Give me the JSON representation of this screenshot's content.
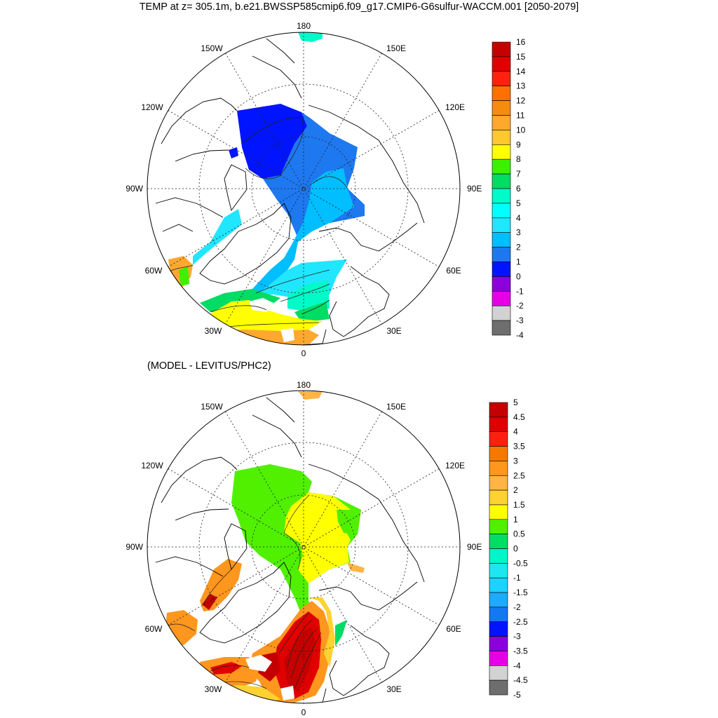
{
  "title": "TEMP at z= 305.1m, b.e21.BWSSP585cmip6.f09_g17.CMIP6-G6sulfur-WACCM.001 [2050-2079]",
  "panels": [
    {
      "id": "temp",
      "subtitle": "",
      "grid_labels": {
        "top": "180",
        "bottom": "0",
        "left": "90W",
        "right": "90E",
        "ul1": "150W",
        "ul2": "120W",
        "ur1": "150E",
        "ur2": "120E",
        "ll1": "60W",
        "ll2": "30W",
        "lr1": "60E",
        "lr2": "30E"
      },
      "colorbar": {
        "labels": [
          "16",
          "15",
          "14",
          "13",
          "12",
          "11",
          "10",
          "9",
          "8",
          "7",
          "6",
          "5",
          "4",
          "3",
          "2",
          "1",
          "0",
          "-1",
          "-2",
          "-3",
          "-4"
        ],
        "colors": [
          "#c40000",
          "#e00000",
          "#ff2010",
          "#ff7000",
          "#f58c10",
          "#ffa830",
          "#ffc830",
          "#ffff00",
          "#3cf000",
          "#00dc64",
          "#00fac8",
          "#00ffff",
          "#20e6ff",
          "#00beff",
          "#1e78f0",
          "#0014ff",
          "#8c00dc",
          "#e600e6",
          "#d2d2d2",
          "#6e6e6e"
        ]
      }
    },
    {
      "id": "diff",
      "subtitle": "(MODEL - LEVITUS/PHC2)",
      "grid_labels": {
        "top": "180",
        "bottom": "0",
        "left": "90W",
        "right": "90E",
        "ul1": "150W",
        "ul2": "120W",
        "ur1": "150E",
        "ur2": "120E",
        "ll1": "60W",
        "ll2": "30W",
        "lr1": "60E",
        "lr2": "30E"
      },
      "colorbar": {
        "labels": [
          "5",
          "4.5",
          "4",
          "3.5",
          "3",
          "2.5",
          "2",
          "1.5",
          "1",
          "0.5",
          "0",
          "-0.5",
          "-1",
          "-1.5",
          "-2",
          "-2.5",
          "-3",
          "-3.5",
          "-4",
          "-4.5",
          "-5"
        ],
        "colors": [
          "#c40000",
          "#e00000",
          "#ff2010",
          "#f57800",
          "#ff961e",
          "#ffb446",
          "#ffd232",
          "#ffff00",
          "#50f000",
          "#00dc64",
          "#00f5c8",
          "#1ee6f0",
          "#1ed2ff",
          "#1eaaff",
          "#1478f0",
          "#0014ff",
          "#8c00dc",
          "#e600e6",
          "#d2d2d2",
          "#6e6e6e"
        ]
      }
    }
  ]
}
